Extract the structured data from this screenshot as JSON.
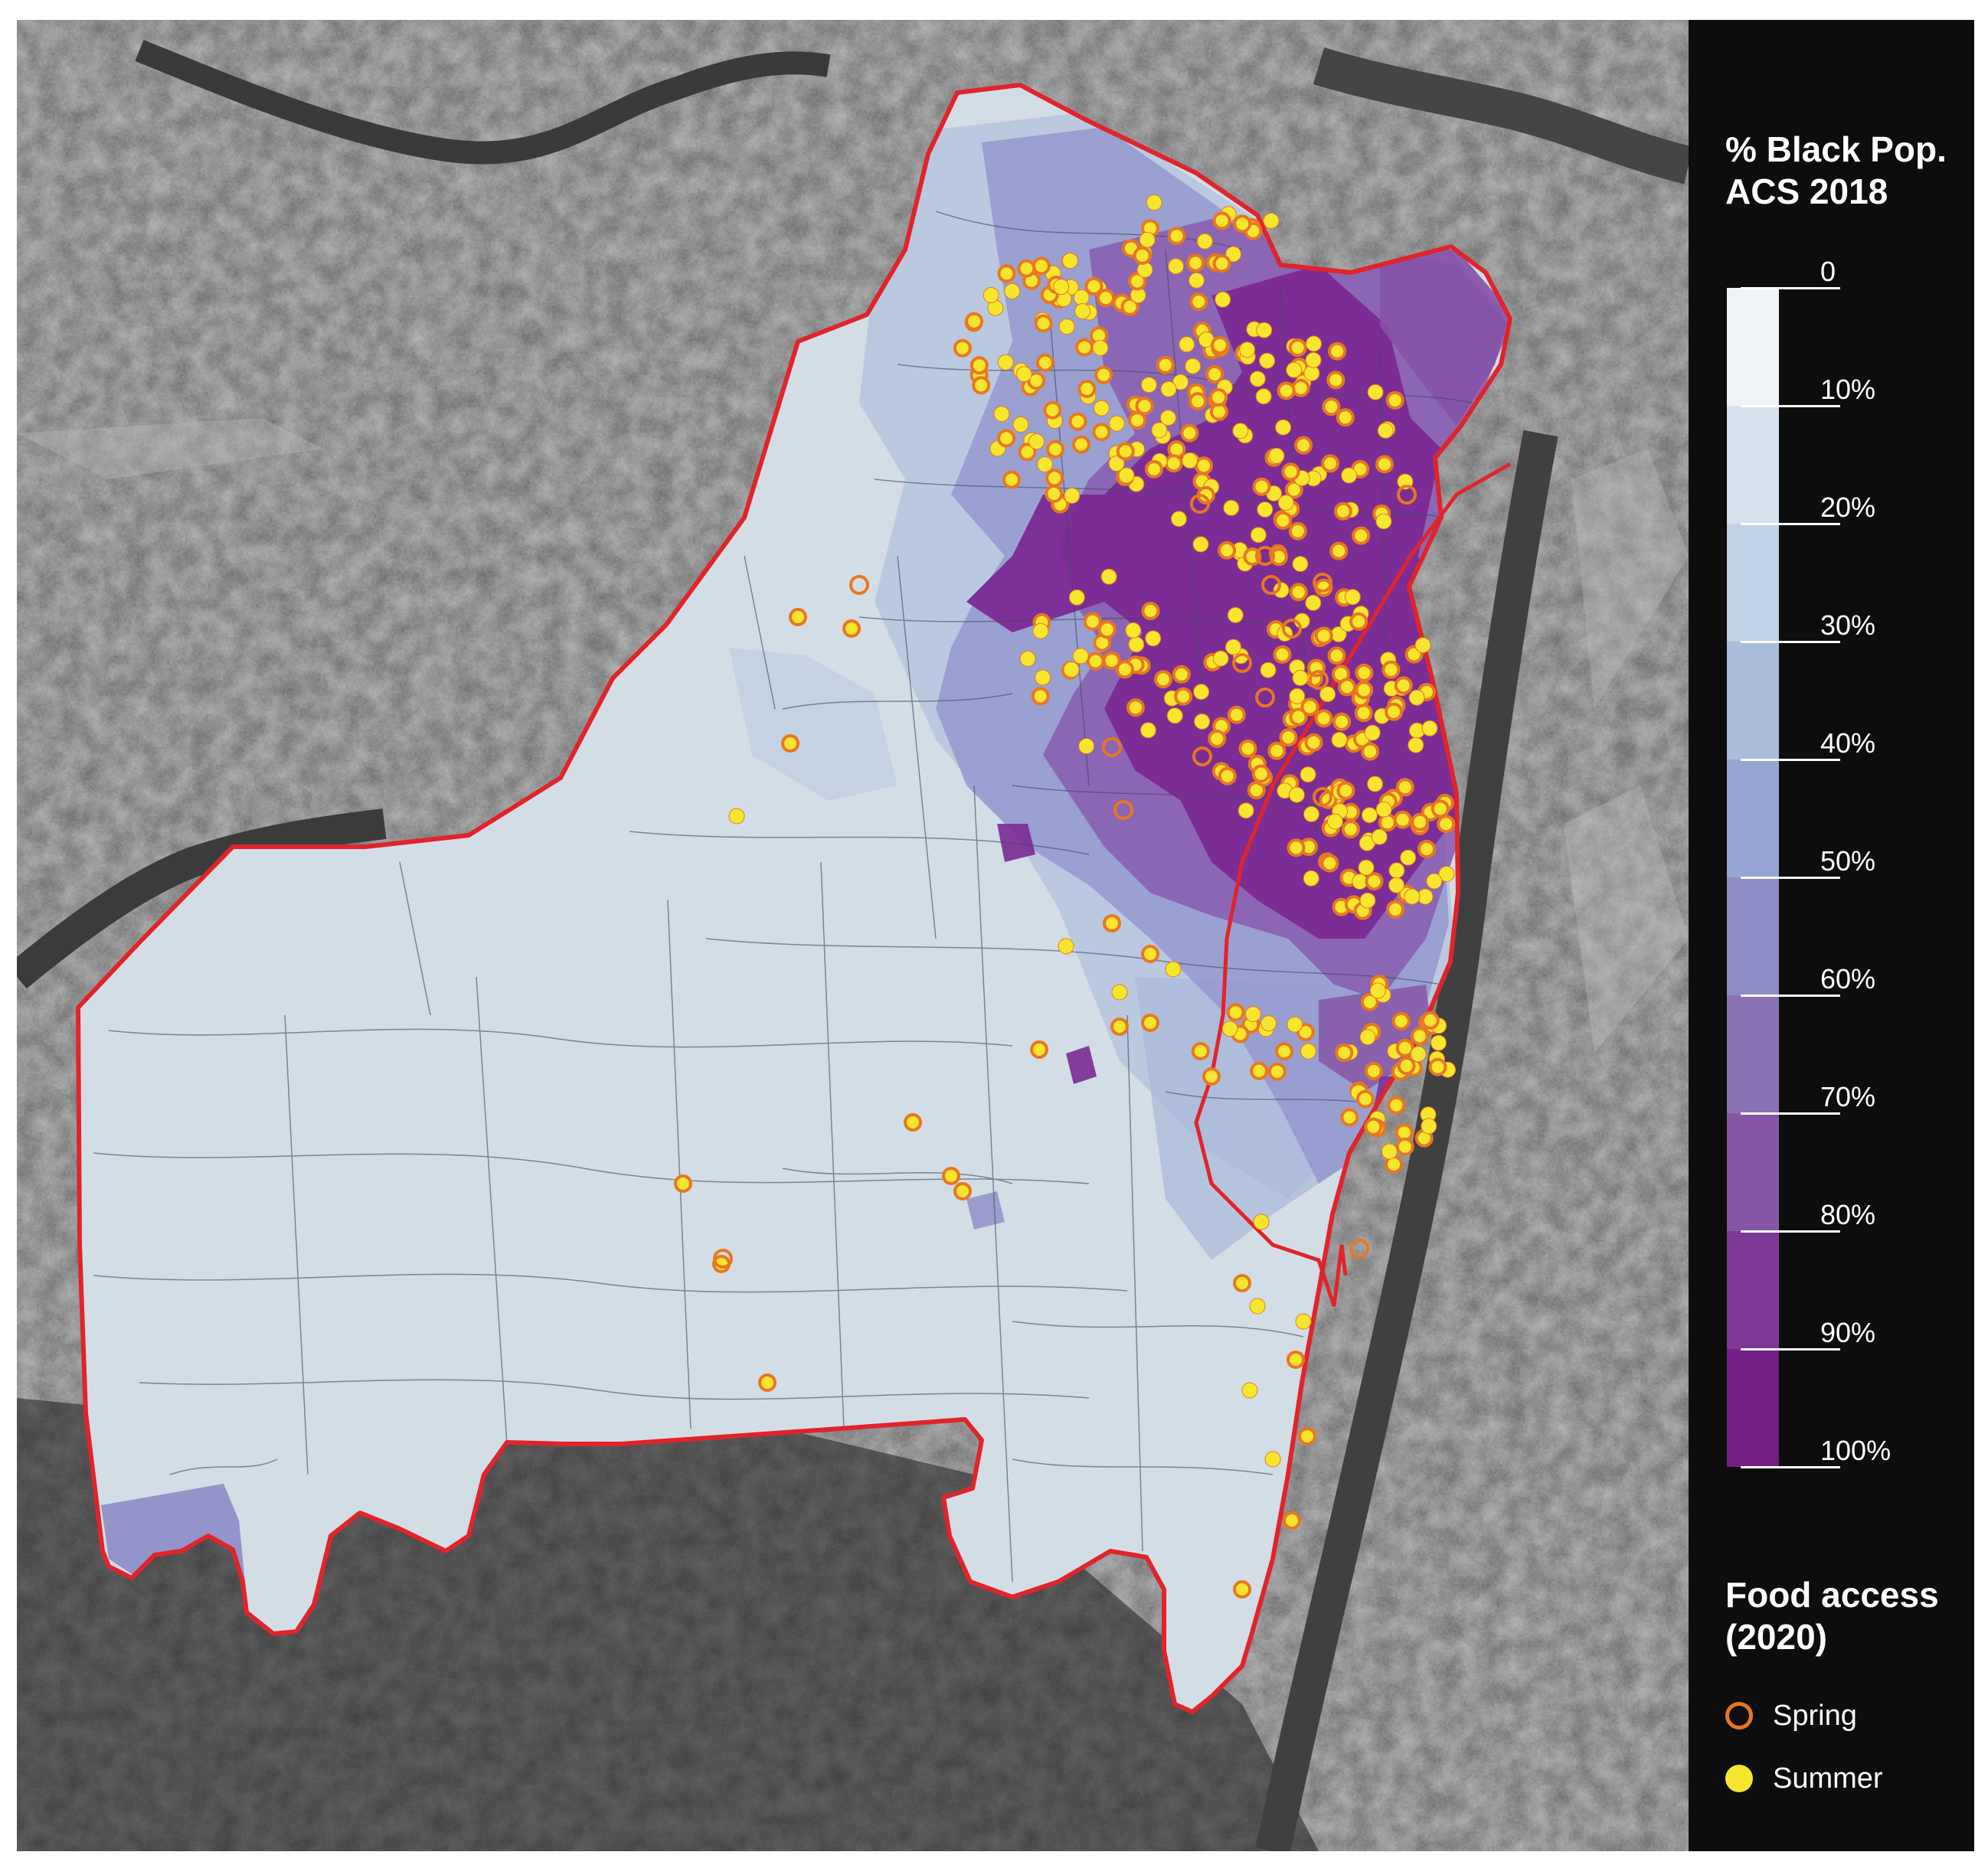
{
  "legend": {
    "population_title": [
      "% Black Pop.",
      "ACS 2018"
    ],
    "ramp_labels": [
      "0",
      "10%",
      "20%",
      "30%",
      "40%",
      "50%",
      "60%",
      "70%",
      "80%",
      "90%",
      "100%"
    ],
    "ramp_colors": [
      "#eef4f8",
      "#d6e3ef",
      "#bfd1e5",
      "#a9bcdb",
      "#96a6d2",
      "#8c8dc6",
      "#8a72b7",
      "#8656a6",
      "#7d3996",
      "#741f86"
    ],
    "food_access_title": [
      "Food access",
      "(2020)"
    ],
    "food_access_items": [
      {
        "label": "Spring",
        "symbol": "orange-ring-icon",
        "color": "#e87722"
      },
      {
        "label": "Summer",
        "symbol": "yellow-dot-icon",
        "color": "#f7e62e"
      }
    ]
  },
  "colors": {
    "boundary": "#e0242b",
    "spring": "#e87722",
    "summer": "#f7e62e"
  }
}
